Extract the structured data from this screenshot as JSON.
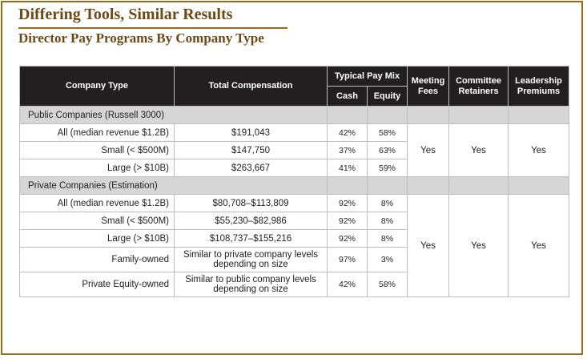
{
  "header": {
    "title": "Differing Tools, Similar Results",
    "subtitle": "Director Pay Programs By Company Type"
  },
  "columns": {
    "company_type": "Company Type",
    "total_compensation": "Total Compensation",
    "pay_mix": "Typical Pay Mix",
    "cash": "Cash",
    "equity": "Equity",
    "meeting_fees": "Meeting Fees",
    "committee_retainers": "Committee Retainers",
    "leadership_premiums": "Leadership Premiums"
  },
  "public": {
    "label": "Public Companies (Russell 3000)",
    "rows": [
      {
        "type": "All (median revenue $1.2B)",
        "comp": "$191,043",
        "cash": "42%",
        "equity": "58%"
      },
      {
        "type": "Small (< $500M)",
        "comp": "$147,750",
        "cash": "37%",
        "equity": "63%"
      },
      {
        "type": "Large (> $10B)",
        "comp": "$263,667",
        "cash": "41%",
        "equity": "59%"
      }
    ],
    "meeting_fees": "Yes",
    "committee_retainers": "Yes",
    "leadership_premiums": "Yes"
  },
  "private": {
    "label": "Private Companies (Estimation)",
    "rows": [
      {
        "type": "All (median revenue $1.2B)",
        "comp": "$80,708–$113,809",
        "cash": "92%",
        "equity": "8%"
      },
      {
        "type": "Small (< $500M)",
        "comp": "$55,230–$82,986",
        "cash": "92%",
        "equity": "8%"
      },
      {
        "type": "Large (> $10B)",
        "comp": "$108,737–$155,216",
        "cash": "92%",
        "equity": "8%"
      },
      {
        "type": "Family-owned",
        "comp": "Similar to private company levels depending on size",
        "cash": "97%",
        "equity": "3%"
      },
      {
        "type": "Private Equity-owned",
        "comp": "Similar to public company levels depending on size",
        "cash": "42%",
        "equity": "58%"
      }
    ],
    "meeting_fees": "Yes",
    "committee_retainers": "Yes",
    "leadership_premiums": "Yes"
  }
}
